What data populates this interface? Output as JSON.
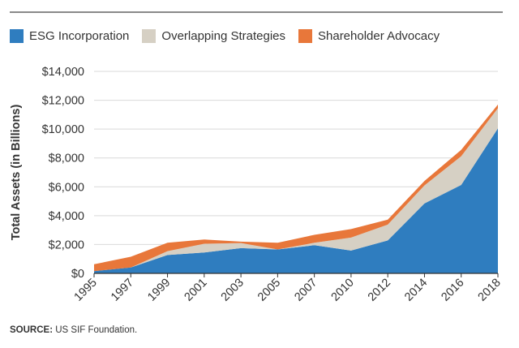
{
  "chart_data": {
    "type": "area",
    "stacked": true,
    "x": [
      "1995",
      "1997",
      "1999",
      "2001",
      "2003",
      "2005",
      "2007",
      "2010",
      "2012",
      "2014",
      "2016",
      "2018"
    ],
    "ylabel": "Total Assets (in Billions)",
    "yticks": [
      "$0",
      "$2,000",
      "$4,000",
      "$6,000",
      "$8,000",
      "$10,000",
      "$12,000",
      "$14,000"
    ],
    "ylim": [
      0,
      14000
    ],
    "grid": true,
    "legend_position": "top-left",
    "series": [
      {
        "name": "ESG Incorporation",
        "color": "#2f7dbf",
        "values": [
          160,
          410,
          1270,
          1450,
          1750,
          1660,
          1950,
          1580,
          2280,
          4850,
          6130,
          10050
        ]
      },
      {
        "name": "Overlapping Strategies",
        "color": "#d6d0c4",
        "values": [
          0,
          0,
          270,
          600,
          350,
          0,
          170,
          900,
          1100,
          1250,
          1990,
          1400
        ]
      },
      {
        "name": "Shareholder Advocacy",
        "color": "#e8773a",
        "values": [
          470,
          740,
          580,
          300,
          100,
          460,
          550,
          590,
          350,
          310,
          440,
          250
        ]
      }
    ]
  },
  "source": {
    "label": "SOURCE:",
    "text": " US SIF Foundation."
  }
}
